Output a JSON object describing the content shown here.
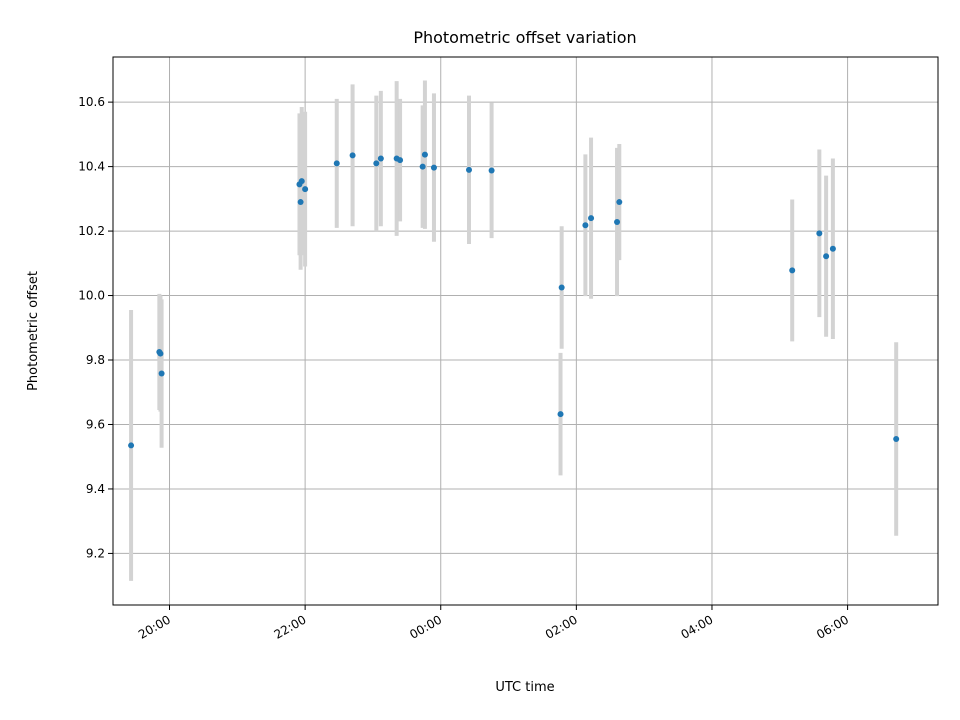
{
  "chart_data": {
    "type": "scatter",
    "title": "Photometric offset variation",
    "xlabel": "UTC time",
    "ylabel": "Photometric offset",
    "x_unit": "hours (UTC, 19:00 day 1 to 07:00 day 2)",
    "xlim": [
      "19:10",
      "07:20"
    ],
    "ylim": [
      9.04,
      10.74
    ],
    "x_ticks": [
      "20:00",
      "22:00",
      "00:00",
      "02:00",
      "04:00",
      "06:00"
    ],
    "y_ticks": [
      "9.2",
      "9.4",
      "9.6",
      "9.8",
      "10.0",
      "10.2",
      "10.4",
      "10.6"
    ],
    "grid": true,
    "colors": {
      "point": "#1f77b4",
      "errorbar": "#d3d3d3",
      "grid": "#b0b0b0"
    },
    "points": [
      {
        "time": "19:26",
        "y": 9.535,
        "err": 0.42
      },
      {
        "time": "19:51",
        "y": 9.825,
        "err": 0.18
      },
      {
        "time": "19:52",
        "y": 9.82,
        "err": 0.18
      },
      {
        "time": "19:53",
        "y": 9.758,
        "err": 0.23
      },
      {
        "time": "21:55",
        "y": 10.345,
        "err": 0.22
      },
      {
        "time": "21:56",
        "y": 10.29,
        "err": 0.21
      },
      {
        "time": "21:57",
        "y": 10.355,
        "err": 0.23
      },
      {
        "time": "22:00",
        "y": 10.33,
        "err": 0.24
      },
      {
        "time": "22:28",
        "y": 10.41,
        "err": 0.2
      },
      {
        "time": "22:42",
        "y": 10.435,
        "err": 0.22
      },
      {
        "time": "23:03",
        "y": 10.41,
        "err": 0.21
      },
      {
        "time": "23:07",
        "y": 10.425,
        "err": 0.21
      },
      {
        "time": "23:21",
        "y": 10.425,
        "err": 0.24
      },
      {
        "time": "23:24",
        "y": 10.42,
        "err": 0.19
      },
      {
        "time": "23:44",
        "y": 10.4,
        "err": 0.19
      },
      {
        "time": "23:46",
        "y": 10.437,
        "err": 0.23
      },
      {
        "time": "23:54",
        "y": 10.397,
        "err": 0.23
      },
      {
        "time": "00:25",
        "y": 10.39,
        "err": 0.23
      },
      {
        "time": "00:45",
        "y": 10.388,
        "err": 0.21
      },
      {
        "time": "01:46",
        "y": 9.632,
        "err": 0.19
      },
      {
        "time": "01:47",
        "y": 10.025,
        "err": 0.19
      },
      {
        "time": "02:08",
        "y": 10.218,
        "err": 0.22
      },
      {
        "time": "02:13",
        "y": 10.24,
        "err": 0.25
      },
      {
        "time": "02:36",
        "y": 10.228,
        "err": 0.23
      },
      {
        "time": "02:38",
        "y": 10.29,
        "err": 0.18
      },
      {
        "time": "05:11",
        "y": 10.078,
        "err": 0.22
      },
      {
        "time": "05:35",
        "y": 10.193,
        "err": 0.26
      },
      {
        "time": "05:41",
        "y": 10.122,
        "err": 0.25
      },
      {
        "time": "05:47",
        "y": 10.145,
        "err": 0.28
      },
      {
        "time": "06:43",
        "y": 9.555,
        "err": 0.3
      }
    ]
  }
}
